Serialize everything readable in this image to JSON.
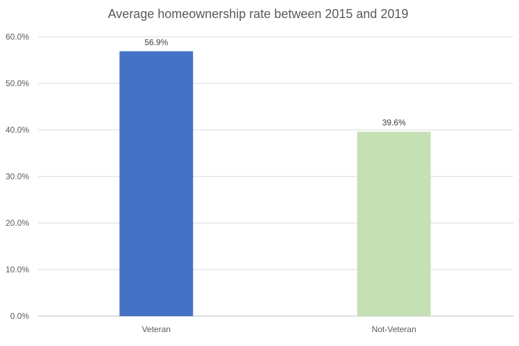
{
  "chart_data": {
    "type": "bar",
    "title": "Average homeownership rate between 2015 and 2019",
    "categories": [
      "Veteran",
      "Not-Veteran"
    ],
    "values": [
      56.9,
      39.6
    ],
    "data_labels": [
      "56.9%",
      "39.6%"
    ],
    "colors": [
      "#4472C4",
      "#C5E0B4"
    ],
    "xlabel": "",
    "ylabel": "",
    "ylim": [
      0,
      60
    ],
    "yticks": [
      0,
      10,
      20,
      30,
      40,
      50,
      60
    ],
    "ytick_labels": [
      "0.0%",
      "10.0%",
      "20.0%",
      "30.0%",
      "40.0%",
      "50.0%",
      "60.0%"
    ],
    "grid": true,
    "legend": "none"
  }
}
